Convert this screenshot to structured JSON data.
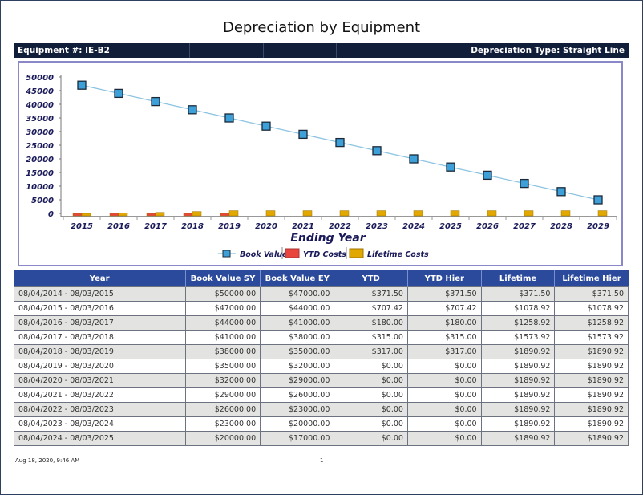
{
  "report": {
    "title": "Depreciation by Equipment",
    "equipment_label": "Equipment #: IE-B2",
    "depreciation_type_label": "Depreciation Type: Straight Line"
  },
  "chart_data": {
    "type": "line+bar",
    "title": "",
    "xlabel": "Ending Year",
    "ylabel": "",
    "ylim": [
      0,
      50000
    ],
    "yticks": [
      0,
      5000,
      10000,
      15000,
      20000,
      25000,
      30000,
      35000,
      40000,
      45000,
      50000
    ],
    "categories": [
      "2015",
      "2016",
      "2017",
      "2018",
      "2019",
      "2020",
      "2021",
      "2022",
      "2023",
      "2024",
      "2025",
      "2026",
      "2027",
      "2028",
      "2029"
    ],
    "series": [
      {
        "name": "Book Value",
        "kind": "line",
        "color": "#3ea0d8",
        "line_color": "#8cc4e2",
        "values": [
          47000,
          44000,
          41000,
          38000,
          35000,
          32000,
          29000,
          26000,
          23000,
          20000,
          17000,
          14000,
          11000,
          8000,
          5000
        ]
      },
      {
        "name": "YTD Costs",
        "kind": "bar",
        "color": "#e8453c",
        "values": [
          371.5,
          707.42,
          180,
          315,
          317,
          0,
          0,
          0,
          0,
          0,
          0,
          0,
          0,
          0,
          0
        ]
      },
      {
        "name": "Lifetime Costs",
        "kind": "bar",
        "color": "#e0a800",
        "values": [
          371.5,
          1078.92,
          1258.92,
          1573.92,
          1890.92,
          1890.92,
          1890.92,
          1890.92,
          1890.92,
          1890.92,
          1890.92,
          1890.92,
          1890.92,
          1890.92,
          1890.92
        ]
      }
    ],
    "legend_position": "bottom",
    "grid": false
  },
  "table": {
    "columns": [
      "Year",
      "Book Value SY",
      "Book Value EY",
      "YTD",
      "YTD Hier",
      "Lifetime",
      "Lifetime Hier"
    ],
    "rows": [
      [
        "08/04/2014 - 08/03/2015",
        "$50000.00",
        "$47000.00",
        "$371.50",
        "$371.50",
        "$371.50",
        "$371.50"
      ],
      [
        "08/04/2015 - 08/03/2016",
        "$47000.00",
        "$44000.00",
        "$707.42",
        "$707.42",
        "$1078.92",
        "$1078.92"
      ],
      [
        "08/04/2016 - 08/03/2017",
        "$44000.00",
        "$41000.00",
        "$180.00",
        "$180.00",
        "$1258.92",
        "$1258.92"
      ],
      [
        "08/04/2017 - 08/03/2018",
        "$41000.00",
        "$38000.00",
        "$315.00",
        "$315.00",
        "$1573.92",
        "$1573.92"
      ],
      [
        "08/04/2018 - 08/03/2019",
        "$38000.00",
        "$35000.00",
        "$317.00",
        "$317.00",
        "$1890.92",
        "$1890.92"
      ],
      [
        "08/04/2019 - 08/03/2020",
        "$35000.00",
        "$32000.00",
        "$0.00",
        "$0.00",
        "$1890.92",
        "$1890.92"
      ],
      [
        "08/04/2020 - 08/03/2021",
        "$32000.00",
        "$29000.00",
        "$0.00",
        "$0.00",
        "$1890.92",
        "$1890.92"
      ],
      [
        "08/04/2021 - 08/03/2022",
        "$29000.00",
        "$26000.00",
        "$0.00",
        "$0.00",
        "$1890.92",
        "$1890.92"
      ],
      [
        "08/04/2022 - 08/03/2023",
        "$26000.00",
        "$23000.00",
        "$0.00",
        "$0.00",
        "$1890.92",
        "$1890.92"
      ],
      [
        "08/04/2023 - 08/03/2024",
        "$23000.00",
        "$20000.00",
        "$0.00",
        "$0.00",
        "$1890.92",
        "$1890.92"
      ],
      [
        "08/04/2024 - 08/03/2025",
        "$20000.00",
        "$17000.00",
        "$0.00",
        "$0.00",
        "$1890.92",
        "$1890.92"
      ]
    ]
  },
  "footer": {
    "timestamp": "Aug 18, 2020, 9:46 AM",
    "page_number": "1"
  }
}
